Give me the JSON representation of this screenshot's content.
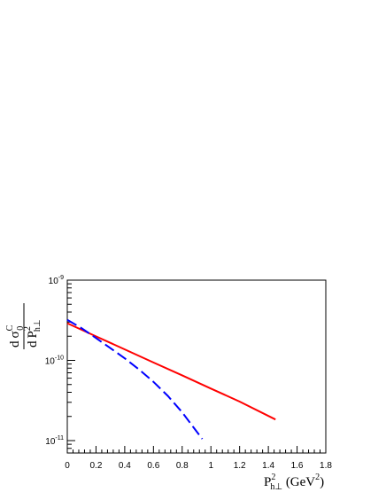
{
  "chart_data": {
    "type": "line",
    "x_scale": "linear",
    "y_scale": "log",
    "xlim": [
      0,
      1.8
    ],
    "ylim": [
      7e-12,
      1e-09
    ],
    "x_ticks": [
      "0",
      "0.2",
      "0.4",
      "0.6",
      "0.8",
      "1",
      "1.2",
      "1.4",
      "1.6",
      "1.8"
    ],
    "y_ticks": [
      {
        "base": "10",
        "exp": "-9",
        "value": 1e-09
      },
      {
        "base": "10",
        "exp": "-10",
        "value": 1e-10
      },
      {
        "base": "10",
        "exp": "-11",
        "value": 1e-11
      }
    ],
    "xlabel": {
      "main": "P",
      "sup": "2",
      "sub": "h⊥",
      "unit": " (GeV",
      "unit_sup": "2",
      "unit_close": ")"
    },
    "ylabel": {
      "num_d": "d",
      "num_sigma": "σ",
      "num_sup": "C",
      "num_sub": "0",
      "den_d": "d",
      "den_P": "P",
      "den_sup": "2",
      "den_sub": "h⊥"
    },
    "grid": false,
    "series": [
      {
        "style": "solid",
        "color": "#ff0000",
        "x": [
          0.0,
          0.2,
          0.4,
          0.6,
          0.8,
          1.0,
          1.2,
          1.45
        ],
        "y": [
          2.9e-10,
          1.99e-10,
          1.37e-10,
          9.4e-11,
          6.5e-11,
          4.45e-11,
          3.06e-11,
          1.83e-11
        ]
      },
      {
        "style": "dashed",
        "color": "#0000ff",
        "x": [
          0.0,
          0.1,
          0.2,
          0.3,
          0.4,
          0.5,
          0.6,
          0.7,
          0.8,
          0.88,
          0.94
        ],
        "y": [
          3.2e-10,
          2.52e-10,
          1.9e-10,
          1.42e-10,
          1.06e-10,
          7.7e-11,
          5.4e-11,
          3.6e-11,
          2.25e-11,
          1.45e-11,
          1.05e-11
        ]
      }
    ]
  }
}
